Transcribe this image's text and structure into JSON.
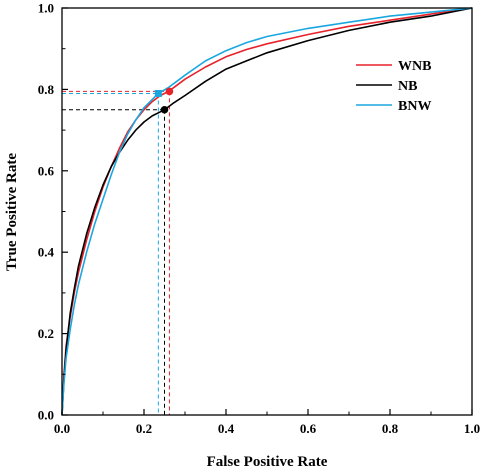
{
  "chart_data": {
    "type": "line",
    "title": "",
    "xlabel": "False Positive Rate",
    "ylabel": "True Positive Rate",
    "xlim": [
      0.0,
      1.0
    ],
    "ylim": [
      0.0,
      1.0
    ],
    "xticks": [
      "0.0",
      "0.2",
      "0.4",
      "0.6",
      "0.8",
      "1.0"
    ],
    "yticks": [
      "0.0",
      "0.2",
      "0.4",
      "0.6",
      "0.8",
      "1.0"
    ],
    "grid": false,
    "legend_position": "top-right",
    "series": [
      {
        "name": "WNB",
        "color": "#e8212a",
        "points": [
          [
            0,
            0
          ],
          [
            0.005,
            0.1
          ],
          [
            0.01,
            0.17
          ],
          [
            0.02,
            0.24
          ],
          [
            0.03,
            0.3
          ],
          [
            0.04,
            0.35
          ],
          [
            0.06,
            0.43
          ],
          [
            0.08,
            0.5
          ],
          [
            0.1,
            0.56
          ],
          [
            0.12,
            0.61
          ],
          [
            0.14,
            0.655
          ],
          [
            0.16,
            0.695
          ],
          [
            0.18,
            0.725
          ],
          [
            0.2,
            0.75
          ],
          [
            0.22,
            0.77
          ],
          [
            0.24,
            0.785
          ],
          [
            0.26,
            0.795
          ],
          [
            0.28,
            0.81
          ],
          [
            0.3,
            0.825
          ],
          [
            0.35,
            0.855
          ],
          [
            0.4,
            0.88
          ],
          [
            0.45,
            0.898
          ],
          [
            0.5,
            0.912
          ],
          [
            0.6,
            0.935
          ],
          [
            0.7,
            0.955
          ],
          [
            0.8,
            0.97
          ],
          [
            0.9,
            0.985
          ],
          [
            1.0,
            1.0
          ]
        ],
        "operating_point": [
          0.262,
          0.795
        ]
      },
      {
        "name": "NB",
        "color": "#000000",
        "points": [
          [
            0,
            0
          ],
          [
            0.005,
            0.09
          ],
          [
            0.01,
            0.16
          ],
          [
            0.02,
            0.25
          ],
          [
            0.03,
            0.31
          ],
          [
            0.04,
            0.365
          ],
          [
            0.06,
            0.445
          ],
          [
            0.08,
            0.51
          ],
          [
            0.1,
            0.565
          ],
          [
            0.12,
            0.61
          ],
          [
            0.14,
            0.645
          ],
          [
            0.16,
            0.675
          ],
          [
            0.18,
            0.7
          ],
          [
            0.2,
            0.72
          ],
          [
            0.22,
            0.735
          ],
          [
            0.24,
            0.745
          ],
          [
            0.25,
            0.75
          ],
          [
            0.27,
            0.765
          ],
          [
            0.3,
            0.785
          ],
          [
            0.35,
            0.82
          ],
          [
            0.4,
            0.85
          ],
          [
            0.45,
            0.87
          ],
          [
            0.5,
            0.89
          ],
          [
            0.6,
            0.92
          ],
          [
            0.7,
            0.945
          ],
          [
            0.8,
            0.965
          ],
          [
            0.9,
            0.98
          ],
          [
            1.0,
            1.0
          ]
        ],
        "operating_point": [
          0.25,
          0.75
        ]
      },
      {
        "name": "BNW",
        "color": "#1aa7e0",
        "points": [
          [
            0,
            0
          ],
          [
            0.005,
            0.08
          ],
          [
            0.01,
            0.14
          ],
          [
            0.02,
            0.21
          ],
          [
            0.03,
            0.27
          ],
          [
            0.04,
            0.32
          ],
          [
            0.06,
            0.4
          ],
          [
            0.08,
            0.47
          ],
          [
            0.1,
            0.53
          ],
          [
            0.12,
            0.59
          ],
          [
            0.14,
            0.645
          ],
          [
            0.16,
            0.69
          ],
          [
            0.18,
            0.725
          ],
          [
            0.2,
            0.755
          ],
          [
            0.22,
            0.775
          ],
          [
            0.235,
            0.79
          ],
          [
            0.26,
            0.805
          ],
          [
            0.28,
            0.82
          ],
          [
            0.3,
            0.835
          ],
          [
            0.35,
            0.87
          ],
          [
            0.4,
            0.895
          ],
          [
            0.45,
            0.915
          ],
          [
            0.5,
            0.93
          ],
          [
            0.6,
            0.95
          ],
          [
            0.7,
            0.965
          ],
          [
            0.8,
            0.98
          ],
          [
            0.9,
            0.99
          ],
          [
            1.0,
            1.0
          ]
        ],
        "operating_point": [
          0.235,
          0.79
        ]
      }
    ]
  }
}
